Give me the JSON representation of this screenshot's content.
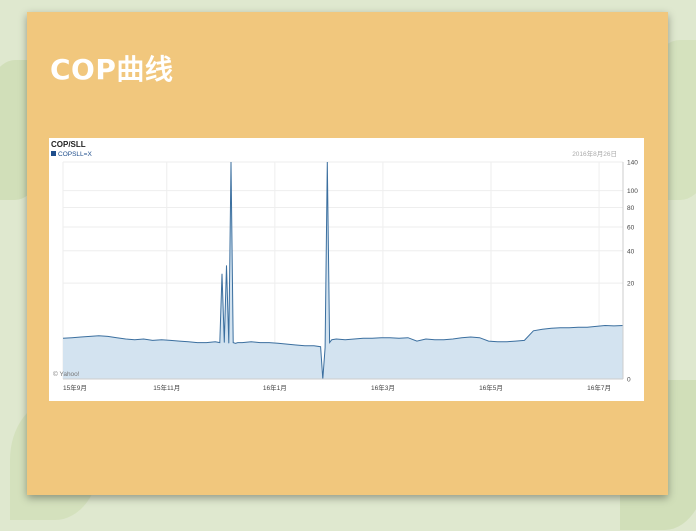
{
  "slide": {
    "title": "COP曲线"
  },
  "chart_data": {
    "type": "line",
    "title": "COP/SLL",
    "legend": "COPSLL=X",
    "date": "2016年8月26日",
    "watermark": "© Yahoo!",
    "y_ticks": [
      "140",
      "100",
      "80",
      "60",
      "40",
      "20",
      "0"
    ],
    "x_ticks": [
      "15年9月",
      "15年11月",
      "16年1月",
      "16年3月",
      "16年5月",
      "16年7月"
    ],
    "series": [
      {
        "x": [
          0,
          4,
          8,
          12,
          16,
          20,
          24,
          28,
          32,
          36,
          40,
          44,
          48,
          52,
          56,
          60,
          64,
          68,
          70,
          71,
          72,
          73,
          74,
          75,
          76,
          77,
          78,
          80,
          84,
          88,
          92,
          96,
          100,
          104,
          108,
          112,
          115,
          116,
          117,
          118,
          119,
          120,
          122,
          126,
          130,
          134,
          138,
          142,
          146,
          150,
          154,
          158,
          162,
          166,
          170,
          174,
          178,
          182,
          186,
          190,
          194,
          198,
          202,
          206,
          210,
          214,
          218,
          222,
          226,
          230,
          234,
          238,
          242,
          246,
          250
        ],
        "y": [
          2.6,
          2.7,
          2.8,
          2.9,
          3.0,
          2.9,
          2.7,
          2.5,
          2.4,
          2.5,
          2.3,
          2.4,
          2.3,
          2.2,
          2.1,
          2.0,
          2.0,
          2.1,
          2.0,
          25,
          2.0,
          30,
          1.9,
          140,
          2.0,
          1.9,
          2.0,
          2.0,
          2.1,
          2.0,
          2.0,
          1.9,
          1.8,
          1.7,
          1.6,
          1.6,
          1.5,
          0,
          1.4,
          140,
          2.0,
          2.4,
          2.5,
          2.4,
          2.5,
          2.6,
          2.6,
          2.7,
          2.7,
          2.6,
          2.7,
          2.2,
          2.5,
          2.4,
          2.4,
          2.5,
          2.7,
          2.8,
          2.7,
          2.2,
          2.1,
          2.1,
          2.2,
          2.3,
          3.9,
          4.2,
          4.4,
          4.5,
          4.5,
          4.6,
          4.6,
          4.8,
          5.0,
          4.9,
          5.0
        ],
        "ylim": [
          0,
          140
        ],
        "scale": "log-like"
      }
    ]
  }
}
